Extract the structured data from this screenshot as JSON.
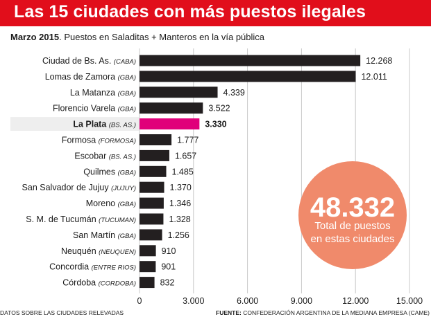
{
  "header": {
    "title": "Las 15 ciudades con más puestos ilegales"
  },
  "subtitle": {
    "date": "Marzo 2015",
    "text": ". Puestos en Saladitas + Manteros en la vía pública"
  },
  "total": {
    "value": "48.332",
    "line1": "Total de puestos",
    "line2": "en estas ciudades"
  },
  "footer": {
    "left": "DATOS SOBRE LAS CIUDADES RELEVADAS",
    "source_label": "FUENTE:",
    "source": " CONFEDERACIÓN ARGENTINA DE LA MEDIANA EMPRESA (CAME)"
  },
  "colors": {
    "header": "#e10e1b",
    "bar": "#231f20",
    "highlight_bar": "#e0007a",
    "highlight_row": "#eeeeee",
    "total_circle": "#f08a6b"
  },
  "chart_data": {
    "type": "bar",
    "orientation": "horizontal",
    "categories": [
      {
        "name": "Ciudad de Bs. As.",
        "region": "(CABA)"
      },
      {
        "name": "Lomas de Zamora",
        "region": "(GBA)"
      },
      {
        "name": "La Matanza",
        "region": "(GBA)"
      },
      {
        "name": "Florencio Varela",
        "region": "(GBA)"
      },
      {
        "name": "La Plata",
        "region": "(BS. AS.)"
      },
      {
        "name": "Formosa",
        "region": "(FORMOSA)"
      },
      {
        "name": "Escobar",
        "region": "(BS. AS.)"
      },
      {
        "name": "Quilmes",
        "region": "(GBA)"
      },
      {
        "name": "San Salvador de Jujuy",
        "region": "(JUJUY)"
      },
      {
        "name": "Moreno",
        "region": "(GBA)"
      },
      {
        "name": "S. M. de Tucumán",
        "region": "(TUCUMAN)"
      },
      {
        "name": "San Martín",
        "region": "(GBA)"
      },
      {
        "name": "Neuquén",
        "region": "(NEUQUEN)"
      },
      {
        "name": "Concordia",
        "region": "(ENTRE RIOS)"
      },
      {
        "name": "Córdoba",
        "region": "(CORDOBA)"
      }
    ],
    "values": [
      12268,
      12011,
      4339,
      3522,
      3330,
      1777,
      1657,
      1485,
      1370,
      1346,
      1328,
      1256,
      910,
      901,
      832
    ],
    "value_labels": [
      "12.268",
      "12.011",
      "4.339",
      "3.522",
      "3.330",
      "1.777",
      "1.657",
      "1.485",
      "1.370",
      "1.346",
      "1.328",
      "1.256",
      "910",
      "901",
      "832"
    ],
    "highlight_index": 4,
    "xlim": [
      0,
      15000
    ],
    "xticks": [
      0,
      3000,
      6000,
      9000,
      12000,
      15000
    ],
    "xtick_labels": [
      "0",
      "3.000",
      "6.000",
      "9.000",
      "12.000",
      "15.000"
    ],
    "grid": "vertical"
  }
}
